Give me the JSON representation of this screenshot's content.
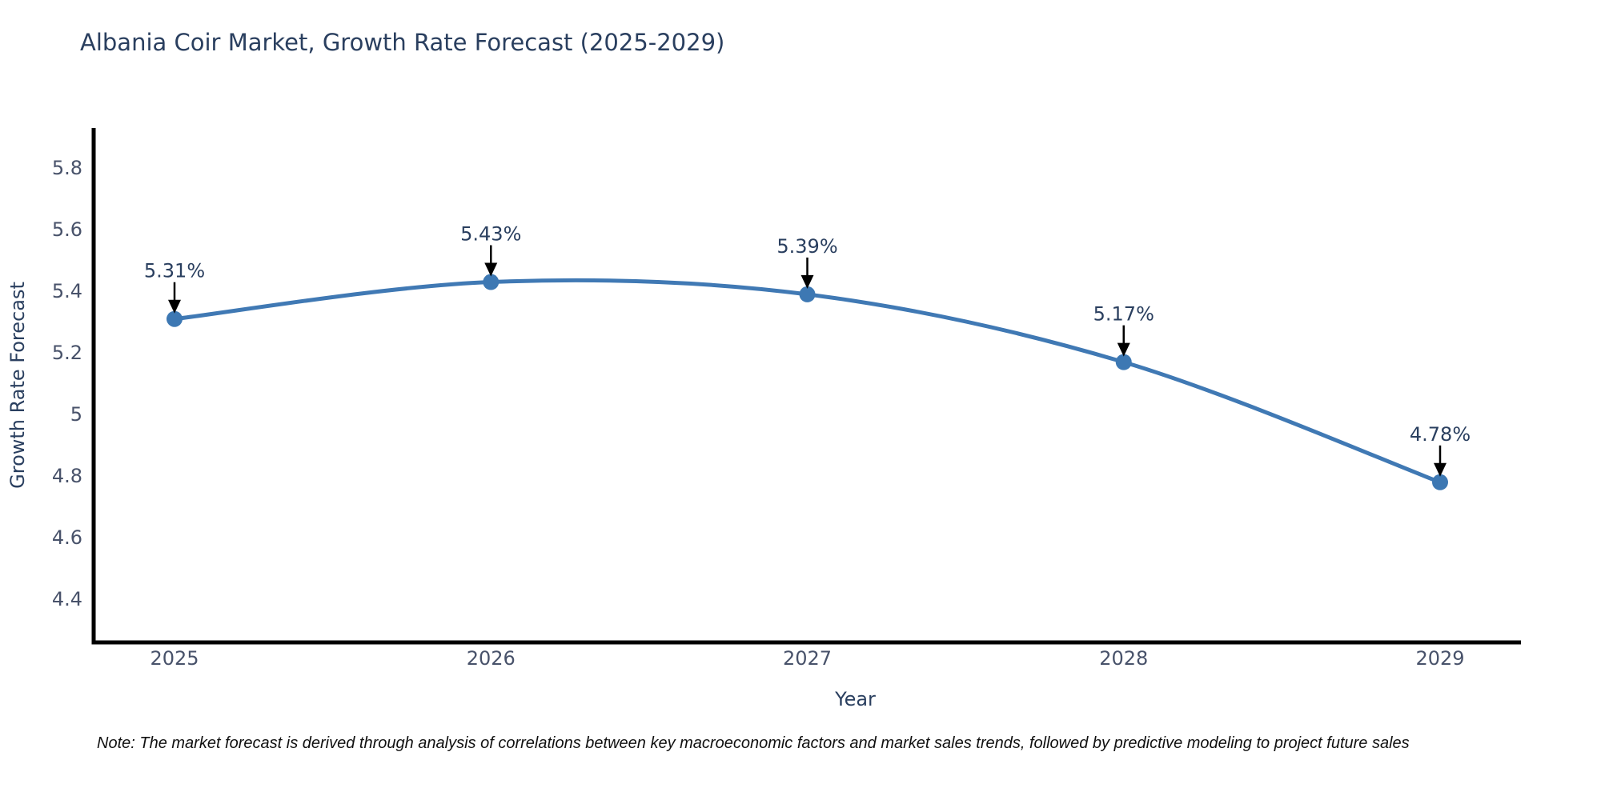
{
  "title": "Albania Coir Market, Growth Rate Forecast (2025-2029)",
  "note": "Note: The market forecast is derived through analysis of correlations between key macroeconomic factors and market sales trends, followed by predictive modeling to project future sales",
  "chart_data": {
    "type": "line",
    "title": "Albania Coir Market, Growth Rate Forecast (2025-2029)",
    "xlabel": "Year",
    "ylabel": "Growth Rate Forecast",
    "categories": [
      "2025",
      "2026",
      "2027",
      "2028",
      "2029"
    ],
    "values": [
      5.31,
      5.43,
      5.39,
      5.17,
      4.78
    ],
    "point_labels": [
      "5.31%",
      "5.43%",
      "5.39%",
      "5.17%",
      "4.78%"
    ],
    "ylim": [
      4.26,
      5.93
    ],
    "yticks": [
      5.8,
      5.6,
      5.4,
      5.2,
      5.0,
      4.8,
      4.6,
      4.4
    ],
    "ytick_labels": [
      "5.8",
      "5.6",
      "5.4",
      "5.2",
      "5",
      "4.8",
      "4.6",
      "4.4"
    ],
    "grid": false,
    "legend": "none",
    "smooth": true,
    "line_color": "#4079b4",
    "marker_color": "#3d78b3",
    "axis_color": "#000000",
    "annotation_arrow_color": "#000000"
  }
}
